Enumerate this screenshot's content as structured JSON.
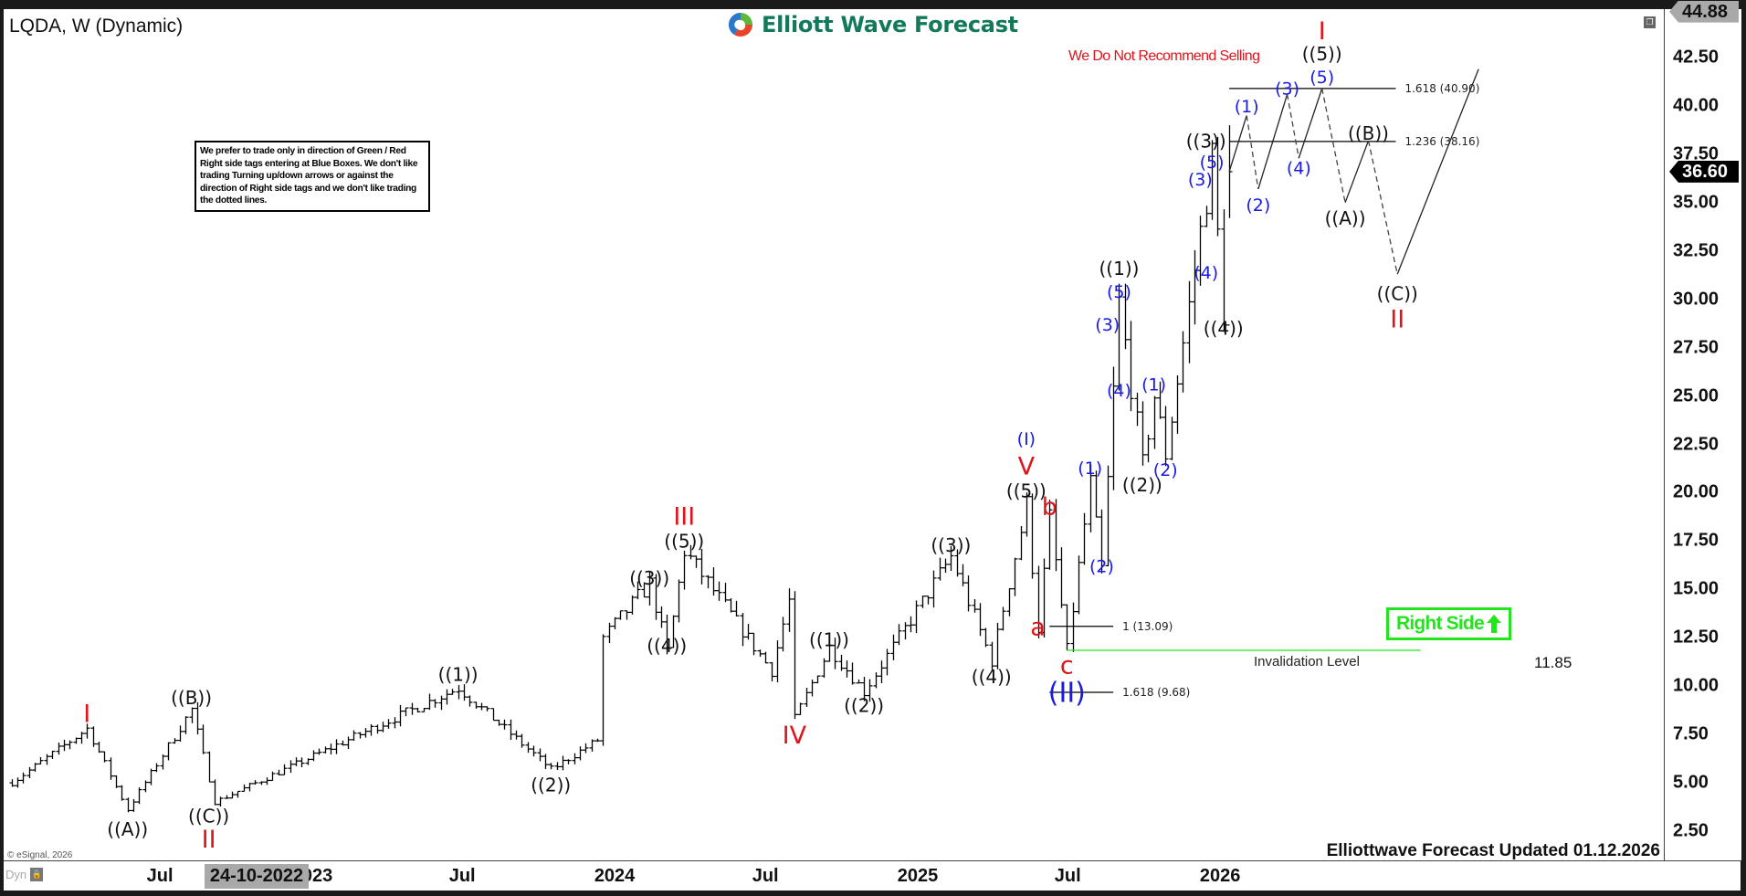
{
  "header": {
    "title": "LQDA, W (Dynamic)",
    "logo_text": "Elliott Wave Forecast",
    "warning": "We Do Not Recommend Selling"
  },
  "note": "We prefer to trade only in direction of Green / Red Right side tags entering at Blue Boxes. We don't like trading Turning up/down arrows or against the direction of Right side tags and we don't like trading the dotted lines.",
  "right_side": {
    "label": "Right Side",
    "arrow": "up-arrow-icon",
    "color": "#22e51c"
  },
  "footer": {
    "updated": "Elliottwave Forecast Updated 01.12.2026",
    "copyright": "© eSignal, 2026",
    "dyn": "Dyn",
    "cursor_date": "24-10-2022"
  },
  "chart_data": {
    "type": "ohlc-bar",
    "symbol": "LQDA",
    "interval": "W",
    "ylim": [
      1.5,
      45
    ],
    "y_ticks": [
      "2.50",
      "5.00",
      "7.50",
      "10.00",
      "12.50",
      "15.00",
      "17.50",
      "20.00",
      "22.50",
      "25.00",
      "27.50",
      "30.00",
      "32.50",
      "35.00",
      "37.50",
      "40.00",
      "42.50"
    ],
    "x_ticks": [
      {
        "label": "Jul",
        "date": "2022-07-01"
      },
      {
        "label": "2023",
        "date": "2023-01-01"
      },
      {
        "label": "Jul",
        "date": "2023-07-01"
      },
      {
        "label": "2024",
        "date": "2024-01-01"
      },
      {
        "label": "Jul",
        "date": "2024-07-01"
      },
      {
        "label": "2025",
        "date": "2025-01-01"
      },
      {
        "label": "Jul",
        "date": "2025-07-01"
      },
      {
        "label": "2026",
        "date": "2026-01-01"
      }
    ],
    "price_tags": {
      "high": "44.88",
      "last": "36.60"
    },
    "pivots": [
      [
        "2022-01-03",
        5.0
      ],
      [
        "2022-04-04",
        7.8
      ],
      [
        "2022-05-23",
        3.6
      ],
      [
        "2022-08-08",
        8.8
      ],
      [
        "2022-09-05",
        4.0
      ],
      [
        "2023-06-26",
        9.9
      ],
      [
        "2023-10-16",
        5.7
      ],
      [
        "2023-12-11",
        7.2
      ],
      [
        "2023-12-18",
        12.5
      ],
      [
        "2024-02-12",
        15.3
      ],
      [
        "2024-03-04",
        11.8
      ],
      [
        "2024-03-25",
        17.0
      ],
      [
        "2024-07-08",
        10.8
      ],
      [
        "2024-07-29",
        14.4
      ],
      [
        "2024-08-05",
        8.3
      ],
      [
        "2024-09-16",
        12.0
      ],
      [
        "2024-10-28",
        9.7
      ],
      [
        "2025-02-10",
        16.7
      ],
      [
        "2025-03-31",
        11.3
      ],
      [
        "2025-05-12",
        19.4
      ],
      [
        "2025-05-26",
        13.0
      ],
      [
        "2025-06-09",
        18.7
      ],
      [
        "2025-06-30",
        11.85
      ],
      [
        "2025-07-28",
        20.5
      ],
      [
        "2025-08-11",
        16.0
      ],
      [
        "2025-09-01",
        29.8
      ],
      [
        "2025-09-29",
        21.4
      ],
      [
        "2025-10-13",
        25.0
      ],
      [
        "2025-10-27",
        22.0
      ],
      [
        "2025-12-22",
        37.3
      ],
      [
        "2026-01-05",
        29.3
      ],
      [
        "2026-01-12",
        36.6
      ]
    ],
    "last_bar": {
      "date": "2026-01-12",
      "high": 39.0,
      "close": 36.6
    },
    "projection": [
      [
        "2026-01-12",
        36.6
      ],
      [
        "2026-02-02",
        39.5
      ],
      [
        "2026-02-16",
        35.7
      ],
      [
        "2026-03-23",
        40.6
      ],
      [
        "2026-04-06",
        37.3
      ],
      [
        "2026-05-04",
        40.9
      ],
      [
        "2026-06-01",
        35.0
      ],
      [
        "2026-06-29",
        38.2
      ],
      [
        "2026-08-03",
        31.3
      ],
      [
        "2026-11-09",
        41.9
      ]
    ],
    "fib_levels": [
      {
        "label": "1.618 (40.90)",
        "price": 40.9,
        "from": "2026-01-12",
        "to": "2026-06-29"
      },
      {
        "label": "1.236 (38.16)",
        "price": 38.16,
        "from": "2026-01-12",
        "to": "2026-06-29"
      },
      {
        "label": "1 (13.09)",
        "price": 13.09,
        "from": "2025-06-09",
        "to": "2025-08-25"
      },
      {
        "label": "1.618 (9.68)",
        "price": 9.68,
        "from": "2025-06-09",
        "to": "2025-08-25"
      }
    ],
    "invalidation": {
      "label": "Invalidation Level",
      "price": 11.85,
      "value_label": "11.85",
      "from": "2025-06-30",
      "to": "2026-08-31",
      "color": "#22e51c"
    },
    "colors": {
      "black": "#111111",
      "red": "#e0141b",
      "blue": "#1a1ae6"
    },
    "wave_labels": [
      {
        "t": "I",
        "c": "red",
        "d": "2022-04-04",
        "p": 8.6
      },
      {
        "t": "((A))",
        "c": "black",
        "d": "2022-05-23",
        "p": 2.6
      },
      {
        "t": "((B))",
        "c": "black",
        "d": "2022-08-08",
        "p": 9.4
      },
      {
        "t": "((C))",
        "c": "black",
        "d": "2022-08-29",
        "p": 3.3
      },
      {
        "t": "II",
        "c": "red",
        "d": "2022-08-29",
        "p": 2.1
      },
      {
        "t": "((1))",
        "c": "black",
        "d": "2023-06-26",
        "p": 10.6
      },
      {
        "t": "((2))",
        "c": "black",
        "d": "2023-10-16",
        "p": 4.9
      },
      {
        "t": "((3))",
        "c": "black",
        "d": "2024-02-12",
        "p": 15.6
      },
      {
        "t": "((4))",
        "c": "black",
        "d": "2024-03-04",
        "p": 12.1
      },
      {
        "t": "((5))",
        "c": "black",
        "d": "2024-03-25",
        "p": 17.5
      },
      {
        "t": "III",
        "c": "red",
        "d": "2024-03-25",
        "p": 18.8
      },
      {
        "t": "IV",
        "c": "red",
        "d": "2024-08-05",
        "p": 7.5
      },
      {
        "t": "((1))",
        "c": "black",
        "d": "2024-09-16",
        "p": 12.4
      },
      {
        "t": "((2))",
        "c": "black",
        "d": "2024-10-28",
        "p": 9.0
      },
      {
        "t": "((3))",
        "c": "black",
        "d": "2025-02-10",
        "p": 17.3
      },
      {
        "t": "((4))",
        "c": "black",
        "d": "2025-03-31",
        "p": 10.5
      },
      {
        "t": "((5))",
        "c": "black",
        "d": "2025-05-12",
        "p": 20.1
      },
      {
        "t": "V",
        "c": "red",
        "d": "2025-05-12",
        "p": 21.4
      },
      {
        "t": "(I)",
        "c": "blue",
        "d": "2025-05-12",
        "p": 22.8
      },
      {
        "t": "a",
        "c": "red",
        "d": "2025-05-26",
        "p": 13.1
      },
      {
        "t": "b",
        "c": "red",
        "d": "2025-06-09",
        "p": 19.3
      },
      {
        "t": "c",
        "c": "red",
        "d": "2025-06-30",
        "p": 11.1
      },
      {
        "t": "(II)",
        "c": "blue",
        "d": "2025-06-30",
        "p": 9.7
      },
      {
        "t": "(1)",
        "c": "blue",
        "d": "2025-07-28",
        "p": 21.3
      },
      {
        "t": "(2)",
        "c": "blue",
        "d": "2025-08-11",
        "p": 16.2
      },
      {
        "t": "(3)",
        "c": "blue",
        "d": "2025-08-18",
        "p": 28.7
      },
      {
        "t": "(4)",
        "c": "blue",
        "d": "2025-09-01",
        "p": 25.3
      },
      {
        "t": "(5)",
        "c": "blue",
        "d": "2025-09-01",
        "p": 30.4
      },
      {
        "t": "((1))",
        "c": "black",
        "d": "2025-09-01",
        "p": 31.6
      },
      {
        "t": "((2))",
        "c": "black",
        "d": "2025-09-29",
        "p": 20.4
      },
      {
        "t": "(1)",
        "c": "blue",
        "d": "2025-10-13",
        "p": 25.6
      },
      {
        "t": "(2)",
        "c": "blue",
        "d": "2025-10-27",
        "p": 21.2
      },
      {
        "t": "(3)",
        "c": "blue",
        "d": "2025-12-08",
        "p": 36.2
      },
      {
        "t": "(5)",
        "c": "blue",
        "d": "2025-12-22",
        "p": 37.1
      },
      {
        "t": "((3))",
        "c": "black",
        "d": "2025-12-15",
        "p": 38.2
      },
      {
        "t": "(4)",
        "c": "blue",
        "d": "2025-12-15",
        "p": 31.4
      },
      {
        "t": "((4))",
        "c": "black",
        "d": "2026-01-05",
        "p": 28.5
      },
      {
        "t": "(1)",
        "c": "blue",
        "d": "2026-02-02",
        "p": 40.0
      },
      {
        "t": "(2)",
        "c": "blue",
        "d": "2026-02-16",
        "p": 34.9
      },
      {
        "t": "(3)",
        "c": "blue",
        "d": "2026-03-23",
        "p": 40.9
      },
      {
        "t": "(4)",
        "c": "blue",
        "d": "2026-04-06",
        "p": 36.8
      },
      {
        "t": "(5)",
        "c": "blue",
        "d": "2026-05-04",
        "p": 41.5
      },
      {
        "t": "((5))",
        "c": "black",
        "d": "2026-05-04",
        "p": 42.7
      },
      {
        "t": "I",
        "c": "red",
        "d": "2026-05-04",
        "p": 43.9
      },
      {
        "t": "((A))",
        "c": "black",
        "d": "2026-06-01",
        "p": 34.2
      },
      {
        "t": "((B))",
        "c": "black",
        "d": "2026-06-29",
        "p": 38.6
      },
      {
        "t": "((C))",
        "c": "black",
        "d": "2026-08-03",
        "p": 30.3
      },
      {
        "t": "II",
        "c": "red",
        "d": "2026-08-03",
        "p": 29.0
      }
    ]
  }
}
